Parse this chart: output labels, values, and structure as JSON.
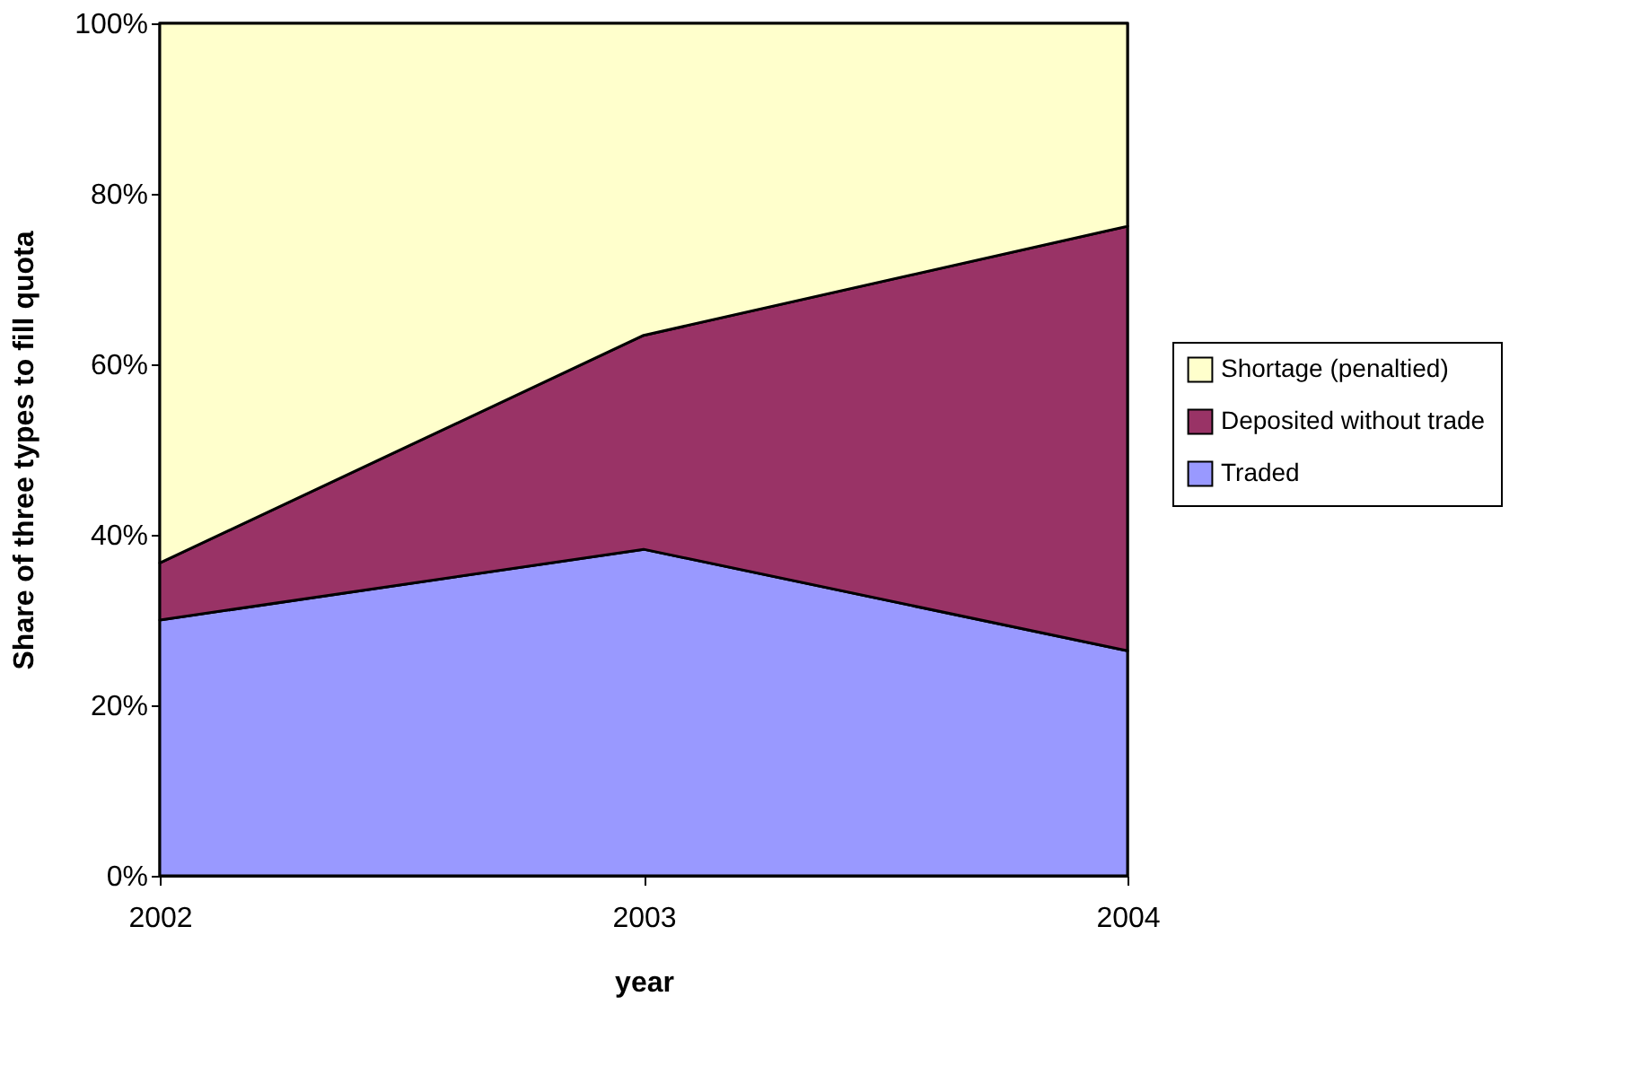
{
  "chart_data": {
    "type": "area",
    "stacked": true,
    "x": [
      2002,
      2003,
      2004
    ],
    "xlabel": "year",
    "ylabel": "Share of three types to fill quota",
    "xlim": [
      2002,
      2004
    ],
    "xticks": [
      2002,
      2003,
      2004
    ],
    "ylim": [
      0,
      100
    ],
    "yticks": [
      {
        "value": 0,
        "label": "0%"
      },
      {
        "value": 20,
        "label": "20%"
      },
      {
        "value": 40,
        "label": "40%"
      },
      {
        "value": 60,
        "label": "60%"
      },
      {
        "value": 80,
        "label": "80%"
      },
      {
        "value": 100,
        "label": "100%"
      }
    ],
    "series": [
      {
        "name": "Traded",
        "color": "#9999ff",
        "values": [
          30.0,
          38.3,
          26.4
        ]
      },
      {
        "name": "Deposited without trade",
        "color": "#993366",
        "values": [
          6.7,
          25.1,
          49.8
        ]
      },
      {
        "name": "Shortage (penaltied)",
        "color": "#ffffcc",
        "values": [
          63.3,
          36.6,
          23.8
        ]
      }
    ],
    "legend": "right",
    "grid": false
  }
}
